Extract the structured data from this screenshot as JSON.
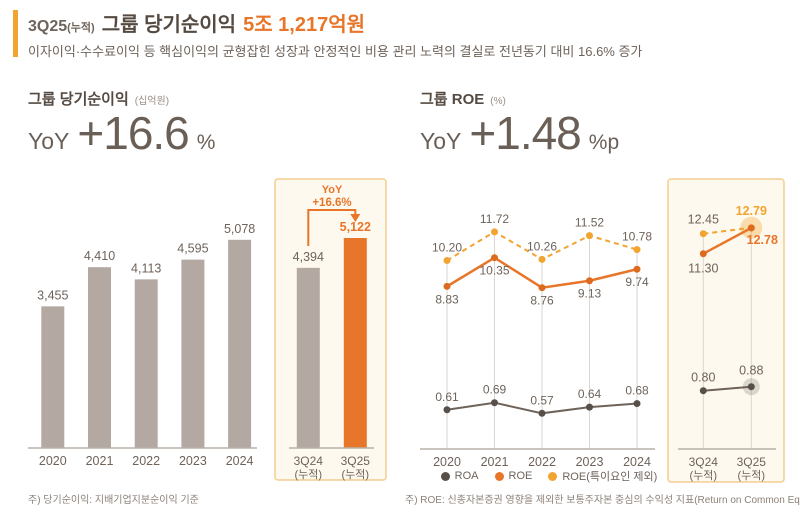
{
  "colors": {
    "accent": "#E8762A",
    "accent_dark_dot": "#DD6B1F",
    "accent_light": "#F2A431",
    "bar_gray": "#B3A9A2",
    "dark_text": "#554A41",
    "label_text": "#6E635A",
    "box_fill": "#FDF9EE",
    "box_border": "#F3CE8F",
    "grid": "#DAD6D2",
    "axis": "#B7B0A9",
    "roa_line": "#6E635A",
    "roa_dot": "#57504A",
    "halo_gray": "#8F867E",
    "footnote": "#8C8178"
  },
  "header": {
    "period": "3Q25",
    "period_suffix": "(누적)",
    "title": "그룹 당기순이익",
    "amount": "5조 1,217억원",
    "subtitle": "이자이익·수수료이익 등 핵심이익의 균형잡힌 성장과  안정적인 비용 관리 노력의 결실로 전년동기 대비 16.6% 증가"
  },
  "panels": {
    "left": {
      "title": "그룹 당기순이익",
      "unit": "(십억원)",
      "yoy_label": "YoY",
      "yoy_value": "+16.6",
      "yoy_unit": "%"
    },
    "right": {
      "title": "그룹 ROE",
      "unit": "(%)",
      "yoy_label": "YoY",
      "yoy_value": "+1.48",
      "yoy_unit": "%p"
    }
  },
  "footnotes": {
    "left": "주) 당기순이익: 지배기업지분순이익 기준",
    "right": "주) ROE: 신종자본증권 영향을 제외한 보통주자본 중심의 수익성 지표(Return on Common Equity) 기준으로 산출"
  },
  "chart_data": [
    {
      "type": "bar",
      "title": "그룹 당기순이익",
      "ylabel": "십억원",
      "categories": [
        "2020",
        "2021",
        "2022",
        "2023",
        "2024"
      ],
      "values": [
        3455,
        4410,
        4113,
        4595,
        5078
      ],
      "highlight": {
        "categories": [
          {
            "l1": "3Q24",
            "l2": "(누적)"
          },
          {
            "l1": "3Q25",
            "l2": "(누적)"
          }
        ],
        "values": [
          4394,
          5122
        ],
        "annotation_line1": "YoY",
        "annotation_line2": "+16.6%"
      }
    },
    {
      "type": "line",
      "title": "그룹 ROE",
      "ylabel": "%",
      "categories": [
        "2020",
        "2021",
        "2022",
        "2023",
        "2024"
      ],
      "series": [
        {
          "name": "ROA",
          "style": "solid",
          "values": [
            0.61,
            0.69,
            0.57,
            0.64,
            0.68
          ]
        },
        {
          "name": "ROE",
          "style": "solid",
          "values": [
            8.83,
            10.35,
            8.76,
            9.13,
            9.74
          ]
        },
        {
          "name": "ROE(특이요인 제외)",
          "style": "dashed",
          "values": [
            10.2,
            11.72,
            10.26,
            11.52,
            10.78
          ]
        }
      ],
      "highlight": {
        "categories": [
          {
            "l1": "3Q24",
            "l2": "(누적)"
          },
          {
            "l1": "3Q25",
            "l2": "(누적)"
          }
        ],
        "series": [
          {
            "name": "ROA",
            "values": [
              0.8,
              0.88
            ]
          },
          {
            "name": "ROE",
            "values": [
              11.3,
              12.78
            ]
          },
          {
            "name": "ROE(특이요인 제외)",
            "values": [
              12.45,
              12.79
            ]
          }
        ]
      },
      "legend_position": "bottom"
    }
  ]
}
